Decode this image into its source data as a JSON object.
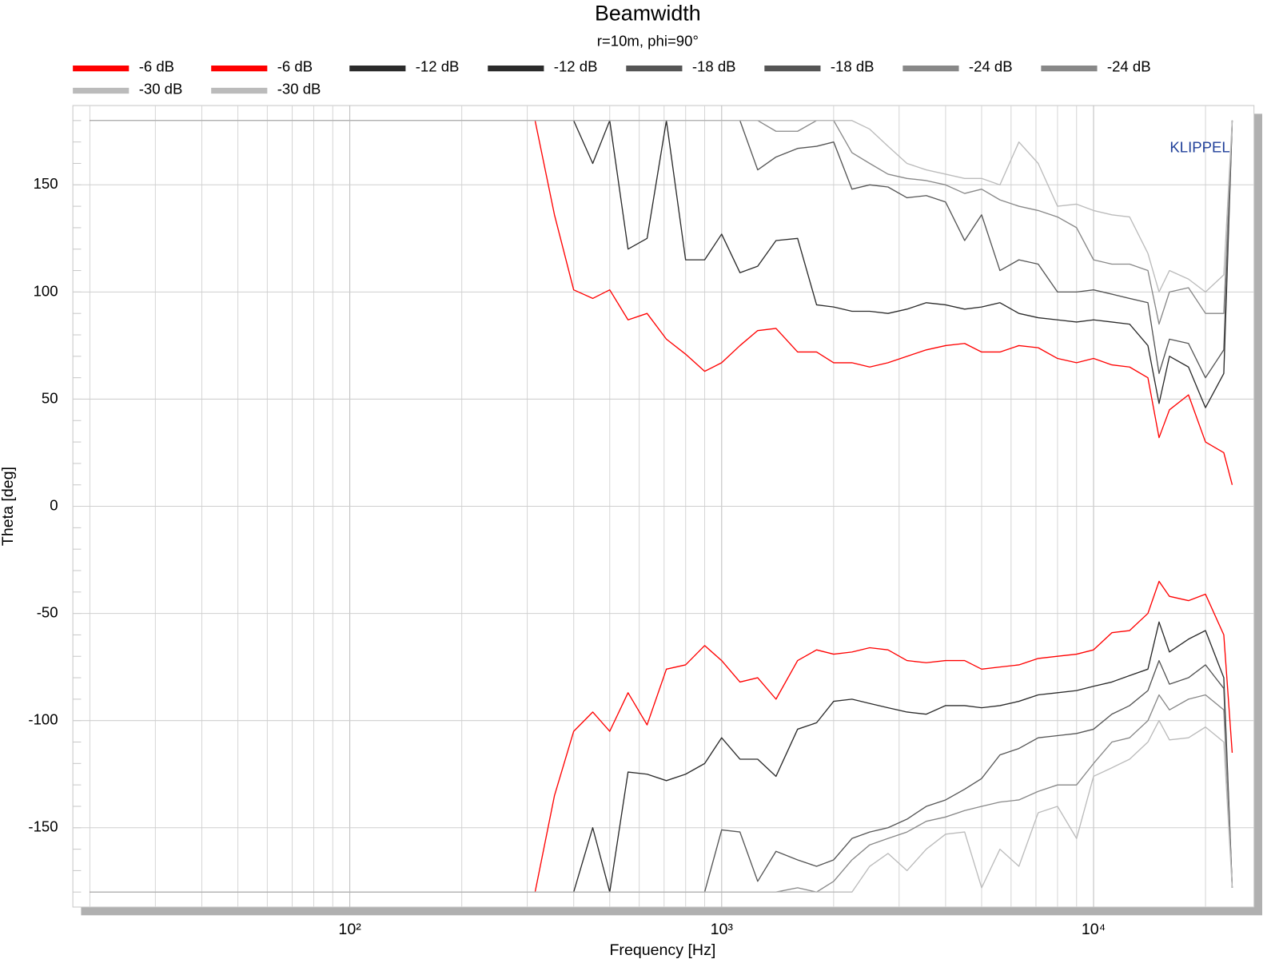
{
  "chart_data": {
    "type": "line",
    "title": "Beamwidth",
    "subtitle": "r=10m, phi=90°",
    "xlabel": "Frequency [Hz]",
    "ylabel": "Theta [deg]",
    "annotation": "KLIPPEL",
    "xscale": "log",
    "grid": true,
    "legend": "top-left",
    "xlim": [
      18,
      27000
    ],
    "ylim": [
      -187,
      187
    ],
    "xticks": [
      {
        "value": 100,
        "label": "10²"
      },
      {
        "value": 1000,
        "label": "10³"
      },
      {
        "value": 10000,
        "label": "10⁴"
      }
    ],
    "yticks": [
      150,
      100,
      50,
      0,
      -50,
      -100,
      -150
    ],
    "x": [
      20,
      315,
      355,
      400,
      450,
      500,
      560,
      630,
      710,
      800,
      900,
      1000,
      1120,
      1250,
      1400,
      1600,
      1800,
      2000,
      2240,
      2500,
      2800,
      3150,
      3550,
      4000,
      4500,
      5000,
      5600,
      6300,
      7100,
      8000,
      9000,
      10000,
      11200,
      12500,
      14000,
      15000,
      16000,
      18000,
      20000,
      22400,
      23600
    ],
    "series": [
      {
        "name": "-6 dB",
        "color": "#ff0000",
        "values": [
          180,
          180,
          136,
          101,
          97,
          101,
          87,
          90,
          78,
          71,
          63,
          67,
          75,
          82,
          83,
          72,
          72,
          67,
          67,
          65,
          67,
          70,
          73,
          75,
          76,
          72,
          72,
          75,
          74,
          69,
          67,
          69,
          66,
          65,
          60,
          32,
          45,
          52,
          30,
          25,
          10
        ]
      },
      {
        "name": "-6 dB",
        "color": "#ff0000",
        "values": [
          -180,
          -180,
          -135,
          -105,
          -96,
          -105,
          -87,
          -102,
          -76,
          -74,
          -65,
          -72,
          -82,
          -80,
          -90,
          -72,
          -67,
          -69,
          -68,
          -66,
          -67,
          -72,
          -73,
          -72,
          -72,
          -76,
          -75,
          -74,
          -71,
          -70,
          -69,
          -67,
          -59,
          -58,
          -50,
          -35,
          -42,
          -44,
          -41,
          -60,
          -115
        ]
      },
      {
        "name": "-12 dB",
        "color": "#2b2b2b",
        "values": [
          180,
          180,
          180,
          180,
          160,
          180,
          120,
          125,
          180,
          115,
          115,
          127,
          109,
          112,
          124,
          125,
          94,
          93,
          91,
          91,
          90,
          92,
          95,
          94,
          92,
          93,
          95,
          90,
          88,
          87,
          86,
          87,
          86,
          85,
          75,
          48,
          70,
          65,
          46,
          62,
          180
        ]
      },
      {
        "name": "-12 dB",
        "color": "#2b2b2b",
        "values": [
          -180,
          -180,
          -180,
          -180,
          -150,
          -180,
          -124,
          -125,
          -128,
          -125,
          -120,
          -108,
          -118,
          -118,
          -126,
          -104,
          -101,
          -91,
          -90,
          -92,
          -94,
          -96,
          -97,
          -93,
          -93,
          -94,
          -93,
          -91,
          -88,
          -87,
          -86,
          -84,
          -82,
          -79,
          -76,
          -54,
          -68,
          -62,
          -58,
          -80,
          -178
        ]
      },
      {
        "name": "-18 dB",
        "color": "#555555",
        "values": [
          180,
          180,
          180,
          180,
          180,
          180,
          180,
          180,
          180,
          180,
          180,
          180,
          180,
          157,
          163,
          167,
          168,
          170,
          148,
          150,
          149,
          144,
          145,
          142,
          124,
          136,
          110,
          115,
          113,
          100,
          100,
          101,
          99,
          97,
          95,
          62,
          78,
          76,
          60,
          73,
          180
        ]
      },
      {
        "name": "-18 dB",
        "color": "#555555",
        "values": [
          -180,
          -180,
          -180,
          -180,
          -180,
          -180,
          -180,
          -180,
          -180,
          -180,
          -180,
          -151,
          -152,
          -175,
          -161,
          -165,
          -168,
          -165,
          -155,
          -152,
          -150,
          -146,
          -140,
          -137,
          -132,
          -127,
          -116,
          -113,
          -108,
          -107,
          -106,
          -104,
          -97,
          -93,
          -86,
          -72,
          -83,
          -80,
          -74,
          -85,
          -178
        ]
      },
      {
        "name": "-24 dB",
        "color": "#888888",
        "values": [
          180,
          180,
          180,
          180,
          180,
          180,
          180,
          180,
          180,
          180,
          180,
          180,
          180,
          180,
          175,
          175,
          180,
          180,
          165,
          160,
          155,
          153,
          152,
          150,
          146,
          148,
          143,
          140,
          138,
          135,
          130,
          115,
          113,
          113,
          110,
          85,
          100,
          102,
          90,
          90,
          180
        ]
      },
      {
        "name": "-24 dB",
        "color": "#888888",
        "values": [
          -180,
          -180,
          -180,
          -180,
          -180,
          -180,
          -180,
          -180,
          -180,
          -180,
          -180,
          -180,
          -180,
          -180,
          -180,
          -178,
          -180,
          -175,
          -165,
          -158,
          -155,
          -152,
          -147,
          -145,
          -142,
          -140,
          -138,
          -137,
          -133,
          -130,
          -130,
          -120,
          -110,
          -108,
          -100,
          -88,
          -95,
          -90,
          -88,
          -95,
          -178
        ]
      },
      {
        "name": "-30 dB",
        "color": "#bbbbbb",
        "values": [
          180,
          180,
          180,
          180,
          180,
          180,
          180,
          180,
          180,
          180,
          180,
          180,
          180,
          180,
          180,
          180,
          180,
          180,
          180,
          176,
          168,
          160,
          157,
          155,
          153,
          153,
          150,
          170,
          160,
          140,
          141,
          138,
          136,
          135,
          118,
          100,
          110,
          106,
          100,
          108,
          180
        ]
      },
      {
        "name": "-30 dB",
        "color": "#bbbbbb",
        "values": [
          -180,
          -180,
          -180,
          -180,
          -180,
          -180,
          -180,
          -180,
          -180,
          -180,
          -180,
          -180,
          -180,
          -180,
          -180,
          -180,
          -180,
          -180,
          -180,
          -168,
          -162,
          -170,
          -160,
          -153,
          -152,
          -178,
          -160,
          -168,
          -143,
          -140,
          -155,
          -126,
          -122,
          -118,
          -110,
          -100,
          -109,
          -108,
          -103,
          -110,
          -178
        ]
      }
    ]
  }
}
